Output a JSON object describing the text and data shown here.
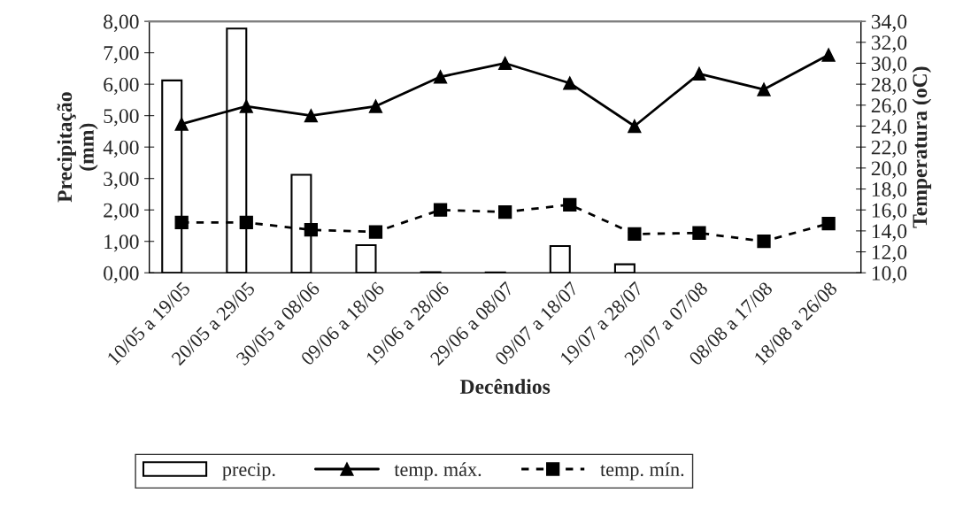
{
  "chart_data": {
    "type": "bar",
    "xlabel": "Decêndios",
    "ylabel": "Precipitação\n(mm)",
    "y2label": "Temperatura (oC)",
    "categories": [
      "10/05 a 19/05",
      "20/05 a 29/05",
      "30/05 a 08/06",
      "09/06 a 18/06",
      "19/06 a 28/06",
      "29/06 a 08/07",
      "09/07 a 18/07",
      "19/07 a 28/07",
      "29/07 a 07/08",
      "08/08 a 17/08",
      "18/08 a 26/08"
    ],
    "series": [
      {
        "name": "precip.",
        "color": "#ffffff",
        "values": [
          6.12,
          7.77,
          3.12,
          0.88,
          0.02,
          0.01,
          0.85,
          0.27,
          null,
          null,
          null
        ]
      },
      {
        "name": "temp. máx.",
        "type": "line",
        "axis": "y2",
        "color": "#000000",
        "marker": "triangle",
        "line_style": "solid",
        "values": [
          24.2,
          25.9,
          25.0,
          25.9,
          28.7,
          30.0,
          28.1,
          24.0,
          29.0,
          27.5,
          30.8
        ]
      },
      {
        "name": "temp. mín.",
        "type": "line",
        "axis": "y2",
        "color": "#000000",
        "marker": "square",
        "line_style": "dashed",
        "values": [
          14.8,
          14.8,
          14.1,
          13.9,
          16.0,
          15.8,
          16.5,
          13.7,
          13.8,
          13.0,
          14.7
        ]
      }
    ],
    "ylim": [
      0,
      8
    ],
    "yticks": [
      {
        "value": 0,
        "label": "0,00"
      },
      {
        "value": 1,
        "label": "1,00"
      },
      {
        "value": 2,
        "label": "2,00"
      },
      {
        "value": 3,
        "label": "3,00"
      },
      {
        "value": 4,
        "label": "4,00"
      },
      {
        "value": 5,
        "label": "5,00"
      },
      {
        "value": 6,
        "label": "6,00"
      },
      {
        "value": 7,
        "label": "7,00"
      },
      {
        "value": 8,
        "label": "8,00"
      }
    ],
    "y2lim": [
      10,
      34
    ],
    "y2ticks": [
      {
        "value": 10,
        "label": "10,0"
      },
      {
        "value": 12,
        "label": "12,0"
      },
      {
        "value": 14,
        "label": "14,0"
      },
      {
        "value": 16,
        "label": "16,0"
      },
      {
        "value": 18,
        "label": "18,0"
      },
      {
        "value": 20,
        "label": "20,0"
      },
      {
        "value": 22,
        "label": "22,0"
      },
      {
        "value": 24,
        "label": "24,0"
      },
      {
        "value": 26,
        "label": "26,0"
      },
      {
        "value": 28,
        "label": "28,0"
      },
      {
        "value": 30,
        "label": "30,0"
      },
      {
        "value": 32,
        "label": "32,0"
      },
      {
        "value": 34,
        "label": "34,0"
      }
    ],
    "grid": false,
    "legend": "bottom"
  }
}
